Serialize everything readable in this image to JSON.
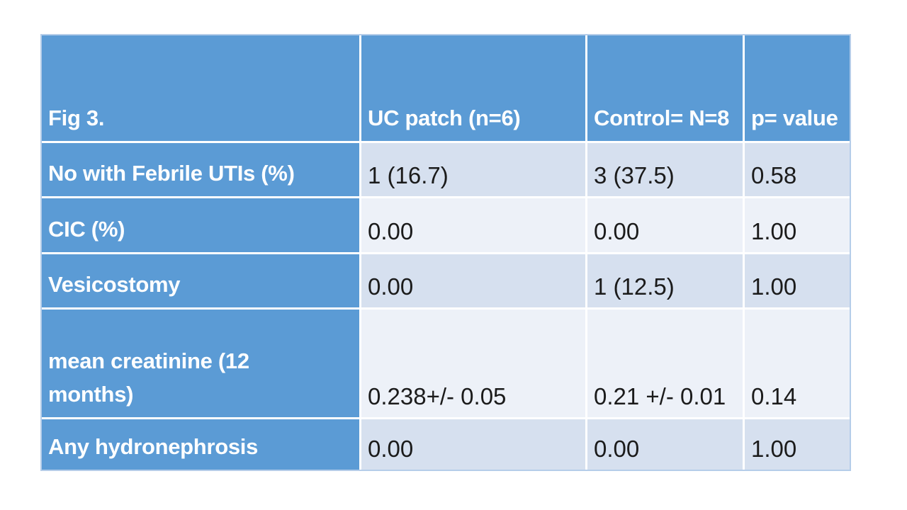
{
  "chart_data": {
    "type": "table",
    "title": "Fig 3.",
    "columns": [
      "Fig 3.",
      "UC patch (n=6)",
      "Control= N=8",
      "p= value"
    ],
    "rows": [
      {
        "label": "No with Febrile UTIs (%)",
        "values": [
          "1 (16.7)",
          "3 (37.5)",
          "0.58"
        ]
      },
      {
        "label": "CIC (%)",
        "values": [
          "0.00",
          "0.00",
          "1.00"
        ]
      },
      {
        "label": "Vesicostomy",
        "values": [
          "0.00",
          "1 (12.5)",
          "1.00"
        ]
      },
      {
        "label": "mean creatinine (12\nmonths)",
        "values": [
          "0.238+/- 0.05",
          "0.21 +/- 0.01",
          "0.14"
        ]
      },
      {
        "label": "Any hydronephrosis",
        "values": [
          "0.00",
          "0.00",
          "1.00"
        ]
      }
    ],
    "layout_hints": {
      "header_row": "solid accent blue, bold white text, bottom-aligned",
      "label_column": "solid accent blue, bold white text",
      "banding": [
        "dark",
        "light",
        "dark",
        "light",
        "dark"
      ]
    }
  },
  "style": {
    "accent_blue": "#5b9bd5",
    "band_dark": "#d6e0ef",
    "band_light": "#edf1f8",
    "grid_line": "#ffffff",
    "outer_border": "#b5cde9",
    "header_text": "#ffffff",
    "value_text": "#1b1b1b",
    "canvas": "#ffffff"
  }
}
